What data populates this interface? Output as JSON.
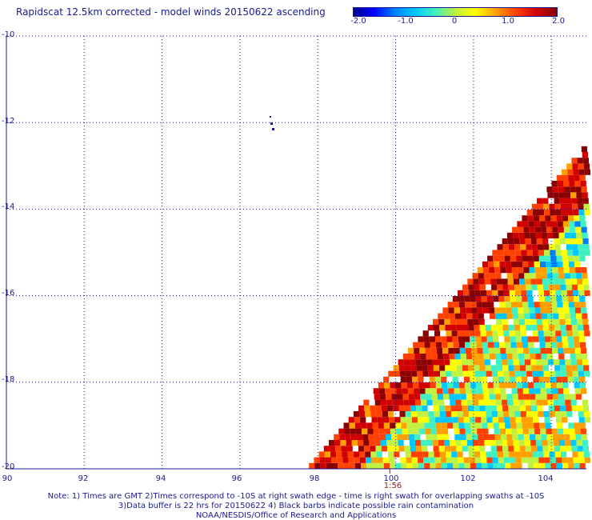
{
  "title": "Rapidscat 12.5km corrected - model winds 20150622 ascending",
  "colorbar": {
    "labels": [
      "-2.0",
      "-1.0",
      "0",
      "1.0",
      "2.0"
    ],
    "colors": [
      "#00008b",
      "#0000ff",
      "#0080ff",
      "#00c8ff",
      "#40f0c0",
      "#c0f040",
      "#ffff00",
      "#ffa000",
      "#ff4000",
      "#d00000",
      "#8b0000"
    ]
  },
  "map": {
    "x_ticks": [
      "90",
      "92",
      "94",
      "96",
      "98",
      "100",
      "102",
      "104"
    ],
    "y_ticks": [
      "-10",
      "-12",
      "-14",
      "-16",
      "-18",
      "-20"
    ],
    "xlim": [
      90,
      104.9
    ],
    "ylim": [
      -20,
      -10
    ],
    "grid": true,
    "swath_time_label": "1:56",
    "swath_time_lon": 99.85
  },
  "notes": [
    "Note: 1) Times are GMT 2)Times correspond to -10S at right swath edge - time is right swath for overlapping swaths at -10S",
    "3)Data buffer is 22 hrs for 20150622 4) Black barbs indicate possible rain contamination",
    "NOAA/NESDIS/Office of Research and Applications"
  ]
}
